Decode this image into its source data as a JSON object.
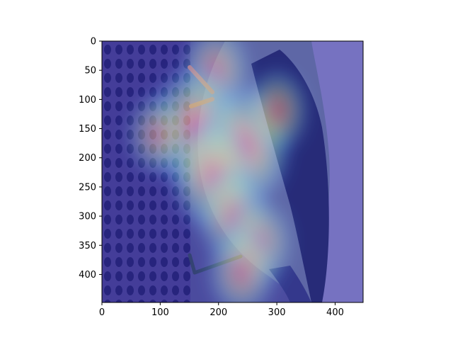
{
  "chart_data": {
    "type": "heatmap",
    "title": "",
    "xlabel": "",
    "ylabel": "",
    "xlim": [
      0,
      448
    ],
    "ylim": [
      448,
      0
    ],
    "xticks": [
      0,
      100,
      200,
      300,
      400
    ],
    "yticks": [
      0,
      50,
      100,
      150,
      200,
      250,
      300,
      350,
      400
    ],
    "grid": false,
    "colormap": "jet",
    "hotspots": [
      {
        "x": 195,
        "y": 50,
        "intensity": 0.55
      },
      {
        "x": 160,
        "y": 150,
        "intensity": 1.0
      },
      {
        "x": 245,
        "y": 180,
        "intensity": 0.95
      },
      {
        "x": 190,
        "y": 230,
        "intensity": 0.8
      },
      {
        "x": 300,
        "y": 120,
        "intensity": 0.45
      },
      {
        "x": 225,
        "y": 300,
        "intensity": 0.6
      },
      {
        "x": 270,
        "y": 345,
        "intensity": 0.5
      },
      {
        "x": 240,
        "y": 395,
        "intensity": 0.55
      },
      {
        "x": 95,
        "y": 160,
        "intensity": 0.4
      }
    ],
    "colors": {
      "background_low": "#3c3c9a",
      "hot": "#ff2a00",
      "warm": "#ffd200",
      "mid": "#62e6b0",
      "cool": "#3fa9ff"
    }
  }
}
